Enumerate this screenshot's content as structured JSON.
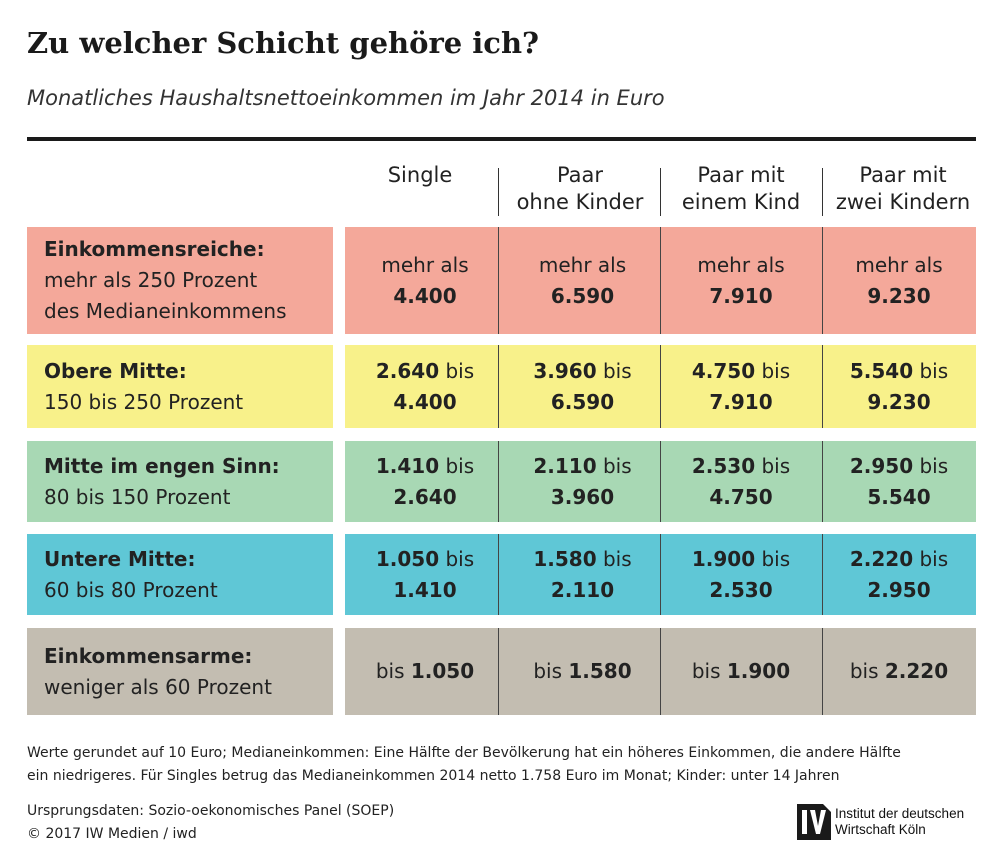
{
  "title": "Zu welcher Schicht gehöre ich?",
  "subtitle": "Monatliches Haushaltsnettoeinkommen im Jahr 2014 in Euro",
  "columns": [
    {
      "line1": "Single",
      "line2": ""
    },
    {
      "line1": "Paar",
      "line2": "ohne Kinder"
    },
    {
      "line1": "Paar mit",
      "line2": "einem Kind"
    },
    {
      "line1": "Paar mit",
      "line2": "zwei Kindern"
    }
  ],
  "rows": [
    {
      "name": "Einkommensreiche:",
      "desc1": "mehr als 250 Prozent",
      "desc2": "des Medianeinkommens",
      "color": "#f4a89a",
      "cells": [
        {
          "pre": "mehr als",
          "low": "",
          "sep": "",
          "high": "4.400"
        },
        {
          "pre": "mehr als",
          "low": "",
          "sep": "",
          "high": "6.590"
        },
        {
          "pre": "mehr als",
          "low": "",
          "sep": "",
          "high": "7.910"
        },
        {
          "pre": "mehr als",
          "low": "",
          "sep": "",
          "high": "9.230"
        }
      ]
    },
    {
      "name": "Obere Mitte:",
      "desc1": "150 bis 250 Prozent",
      "desc2": "",
      "color": "#f8f18a",
      "cells": [
        {
          "pre": "",
          "low": "2.640",
          "sep": " bis",
          "high": "4.400"
        },
        {
          "pre": "",
          "low": "3.960",
          "sep": " bis",
          "high": "6.590"
        },
        {
          "pre": "",
          "low": "4.750",
          "sep": " bis",
          "high": "7.910"
        },
        {
          "pre": "",
          "low": "5.540",
          "sep": " bis",
          "high": "9.230"
        }
      ]
    },
    {
      "name": "Mitte im engen Sinn:",
      "desc1": "80 bis 150 Prozent",
      "desc2": "",
      "color": "#a8d8b4",
      "cells": [
        {
          "pre": "",
          "low": "1.410",
          "sep": " bis",
          "high": "2.640"
        },
        {
          "pre": "",
          "low": "2.110",
          "sep": " bis",
          "high": "3.960"
        },
        {
          "pre": "",
          "low": "2.530",
          "sep": " bis",
          "high": "4.750"
        },
        {
          "pre": "",
          "low": "2.950",
          "sep": " bis",
          "high": "5.540"
        }
      ]
    },
    {
      "name": "Untere Mitte:",
      "desc1": "60 bis 80 Prozent",
      "desc2": "",
      "color": "#5fc7d6",
      "cells": [
        {
          "pre": "",
          "low": "1.050",
          "sep": " bis",
          "high": "1.410"
        },
        {
          "pre": "",
          "low": "1.580",
          "sep": " bis",
          "high": "2.110"
        },
        {
          "pre": "",
          "low": "1.900",
          "sep": " bis",
          "high": "2.530"
        },
        {
          "pre": "",
          "low": "2.220",
          "sep": " bis",
          "high": "2.950"
        }
      ]
    },
    {
      "name": "Einkommensarme:",
      "desc1": "weniger als 60 Prozent",
      "desc2": "",
      "color": "#c3bdb1",
      "cells": [
        {
          "pre": "bis ",
          "low": "",
          "sep": "",
          "high": "1.050"
        },
        {
          "pre": "bis ",
          "low": "",
          "sep": "",
          "high": "1.580"
        },
        {
          "pre": "bis ",
          "low": "",
          "sep": "",
          "high": "1.900"
        },
        {
          "pre": "bis ",
          "low": "",
          "sep": "",
          "high": "2.220"
        }
      ]
    }
  ],
  "footnote_line1": "Werte gerundet auf 10 Euro; Medianeinkommen: Eine Hälfte der Bevölkerung hat ein höheres Einkommen, die andere Hälfte",
  "footnote_line2": "ein niedrigeres. Für Singles betrug das Medianeinkommen 2014 netto 1.758 Euro im Monat; Kinder: unter 14 Jahren",
  "source_line": "Ursprungsdaten: Sozio-oekonomisches Panel (SOEP)",
  "copyright_line": "© 2017 IW Medien / iwd",
  "logo_line1": "Institut der deutschen",
  "logo_line2": "Wirtschaft Köln",
  "chart_data": {
    "type": "table",
    "title": "Zu welcher Schicht gehöre ich?",
    "subtitle": "Monatliches Haushaltsnettoeinkommen im Jahr 2014 in Euro",
    "columns": [
      "Single",
      "Paar ohne Kinder",
      "Paar mit einem Kind",
      "Paar mit zwei Kindern"
    ],
    "rows": [
      {
        "label": "Einkommensreiche: mehr als 250 Prozent des Medianeinkommens",
        "values": [
          "mehr als 4.400",
          "mehr als 6.590",
          "mehr als 7.910",
          "mehr als 9.230"
        ]
      },
      {
        "label": "Obere Mitte: 150 bis 250 Prozent",
        "values": [
          "2.640 bis 4.400",
          "3.960 bis 6.590",
          "4.750 bis 7.910",
          "5.540 bis 9.230"
        ]
      },
      {
        "label": "Mitte im engen Sinn: 80 bis 150 Prozent",
        "values": [
          "1.410 bis 2.640",
          "2.110 bis 3.960",
          "2.530 bis 4.750",
          "2.950 bis 5.540"
        ]
      },
      {
        "label": "Untere Mitte: 60 bis 80 Prozent",
        "values": [
          "1.050 bis 1.410",
          "1.580 bis 2.110",
          "1.900 bis 2.530",
          "2.220 bis 2.950"
        ]
      },
      {
        "label": "Einkommensarme: weniger als 60 Prozent",
        "values": [
          "bis 1.050",
          "bis 1.580",
          "bis 1.900",
          "bis 2.220"
        ]
      }
    ]
  }
}
